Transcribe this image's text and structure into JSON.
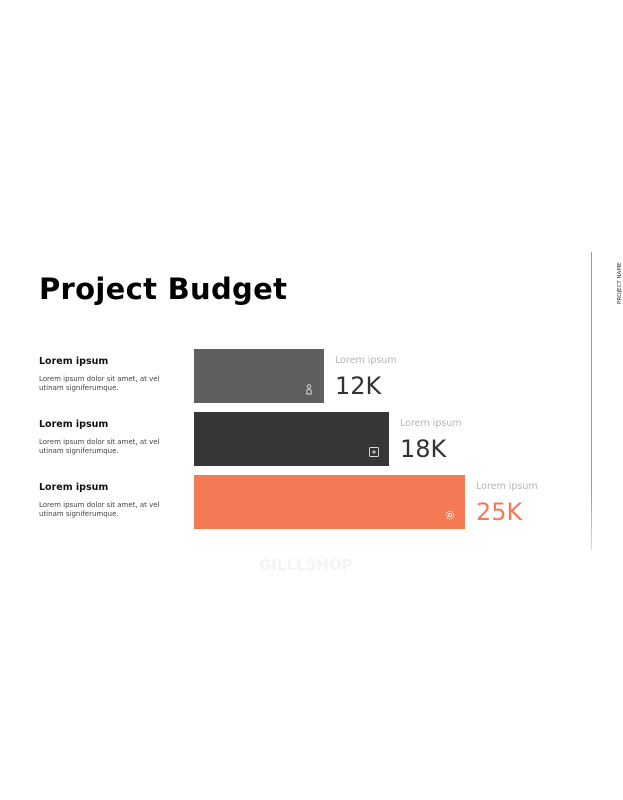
{
  "title": "Project Budget",
  "side_label": "PROJECT NAME",
  "watermark": "GILLLSHOP",
  "colors": {
    "bar1": "#5f5f5f",
    "bar2": "#363636",
    "bar3": "#f47a55"
  },
  "chart_data": {
    "type": "bar",
    "orientation": "horizontal",
    "categories": [
      "Lorem ipsum",
      "Lorem ipsum",
      "Lorem ipsum"
    ],
    "values": [
      12,
      18,
      25
    ],
    "value_labels": [
      "12K",
      "18K",
      "25K"
    ],
    "value_captions": [
      "Lorem ipsum",
      "Lorem ipsum",
      "Lorem ipsum"
    ],
    "descriptions": [
      "Lorem ipsum dolor sit amet, at vel utinam signiferumque.",
      "Lorem ipsum dolor sit amet, at vel utinam signiferumque.",
      "Lorem ipsum dolor sit amet, at vel utinam signiferumque."
    ],
    "icons": [
      "person-icon",
      "plus-square-icon",
      "gear-icon"
    ],
    "grid": false
  }
}
